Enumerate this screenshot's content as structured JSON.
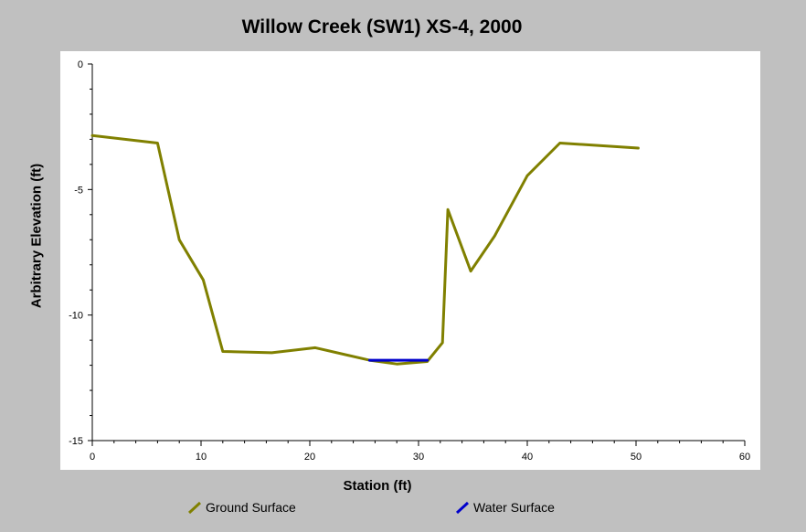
{
  "chart_data": {
    "type": "line",
    "title": "Willow Creek (SW1) XS-4, 2000",
    "xlabel": "Station (ft)",
    "ylabel": "Arbitrary Elevation (ft)",
    "xlim": [
      0,
      60
    ],
    "ylim": [
      -15,
      0
    ],
    "x_ticks": [
      "0",
      "10",
      "20",
      "30",
      "40",
      "50",
      "60"
    ],
    "y_ticks": [
      "0",
      "-5",
      "-10",
      "-15"
    ],
    "grid": false,
    "legend_position": "bottom",
    "series": [
      {
        "name": "Ground Surface",
        "color": "#808000",
        "x": [
          0,
          6,
          8,
          10.2,
          12,
          16.5,
          20.5,
          25.5,
          28,
          30.8,
          32.2,
          32.7,
          34.8,
          37,
          40,
          43,
          50.2
        ],
        "y": [
          -2.85,
          -3.15,
          -7,
          -8.6,
          -11.45,
          -11.5,
          -11.3,
          -11.8,
          -11.95,
          -11.85,
          -11.1,
          -5.8,
          -8.25,
          -6.85,
          -4.45,
          -3.15,
          -3.35
        ]
      },
      {
        "name": "Water Surface",
        "color": "#0000cc",
        "x": [
          25.5,
          30.8
        ],
        "y": [
          -11.8,
          -11.8
        ]
      }
    ]
  }
}
